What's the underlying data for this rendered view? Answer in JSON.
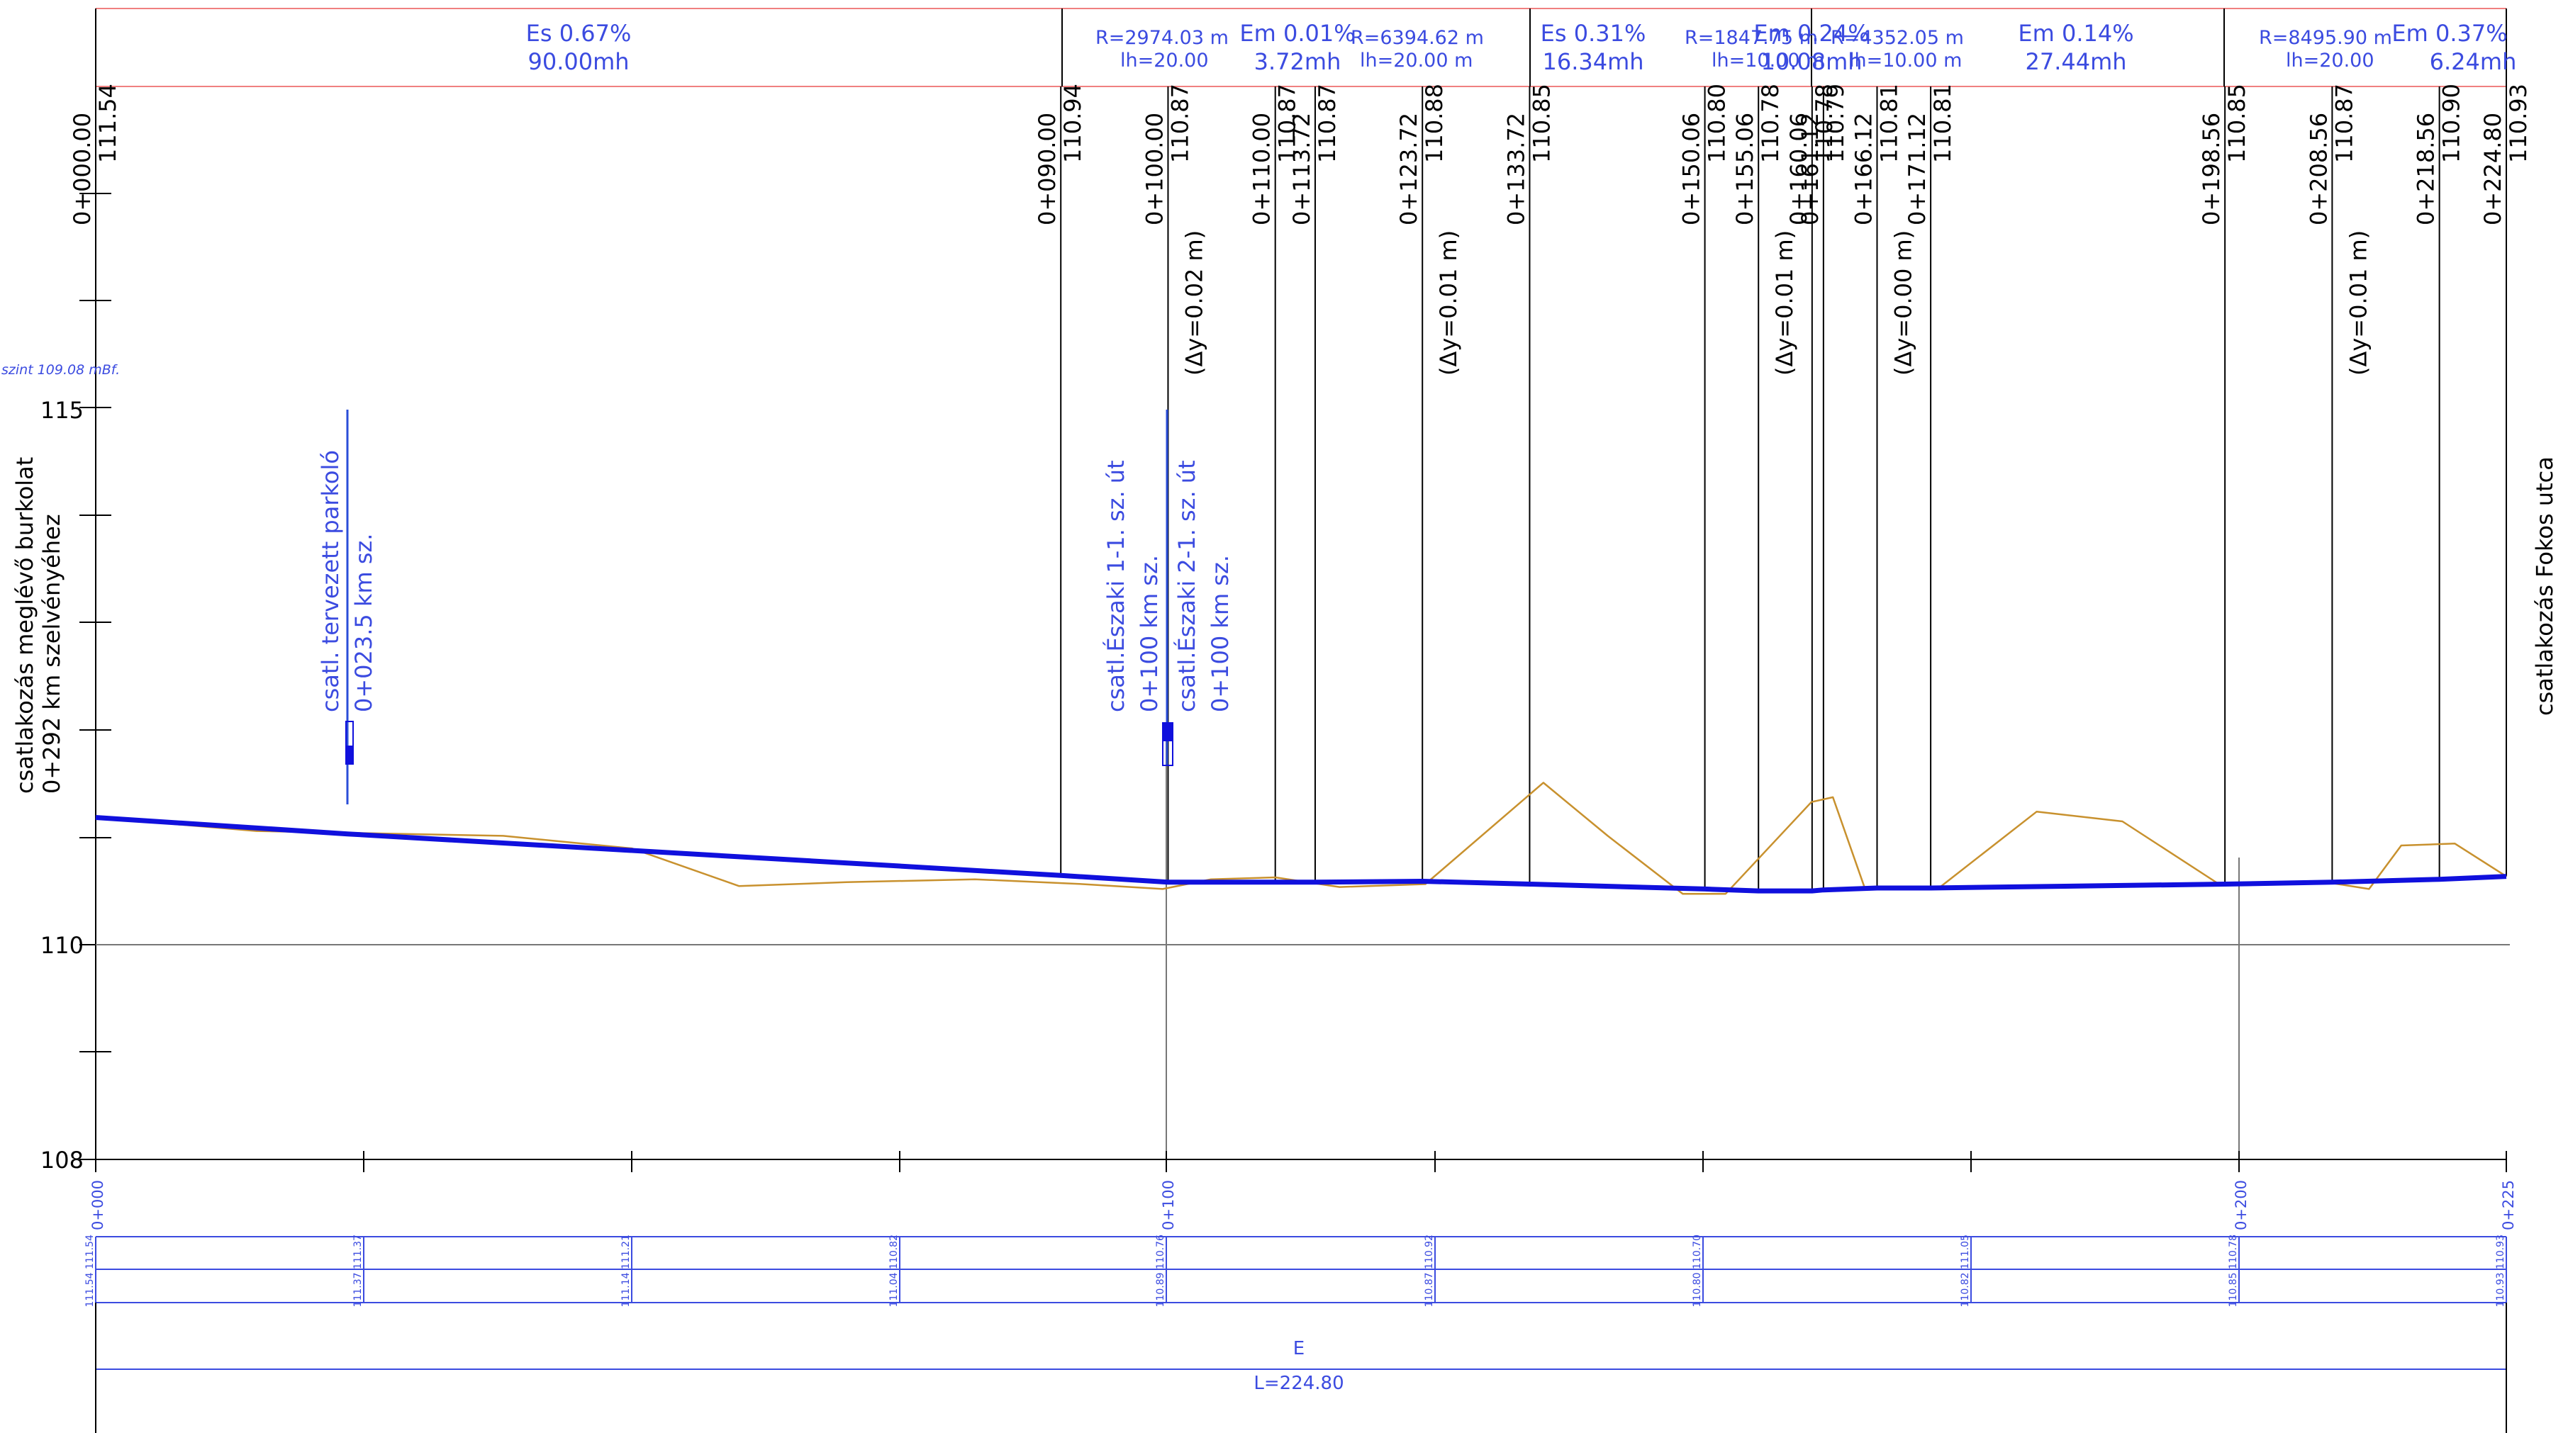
{
  "header": {
    "segments": [
      {
        "grade": "Es  0.67%",
        "length": "90.00mh"
      },
      {
        "grade": "Em  0.01%",
        "length": "3.72mh"
      },
      {
        "grade": "Es  0.31%",
        "length": "16.34mh"
      },
      {
        "grade": "Em  0.24%",
        "length": "10.08mh"
      },
      {
        "grade": "Em  0.14%",
        "length": "27.44mh"
      },
      {
        "grade": "Em  0.37%",
        "length": "6.24mh"
      }
    ],
    "curves": [
      {
        "radius": "R=2974.03  m",
        "lh": "lh=20.00"
      },
      {
        "radius": "R=6394.62  m",
        "lh": "lh=20.00  m"
      },
      {
        "radius": "R=1847.75  m",
        "lh": "lh=10.00  m"
      },
      {
        "radius": "R=4352.05  m",
        "lh": "lh=10.00  m"
      },
      {
        "radius": "R=8495.90  m",
        "lh": "lh=20.00"
      }
    ]
  },
  "stations": [
    {
      "station": "0+000.00",
      "elev": "111.54"
    },
    {
      "station": "0+090.00",
      "elev": "110.94"
    },
    {
      "station": "0+100.00",
      "elev": "110.87",
      "dy": "(Δy=0.02  m)"
    },
    {
      "station": "0+110.00",
      "elev": "110.87"
    },
    {
      "station": "0+113.72",
      "elev": "110.87"
    },
    {
      "station": "0+123.72",
      "elev": "110.88",
      "dy": "(Δy=0.01  m)"
    },
    {
      "station": "0+133.72",
      "elev": "110.85"
    },
    {
      "station": "0+150.06",
      "elev": "110.80"
    },
    {
      "station": "0+155.06",
      "elev": "110.78",
      "dy": "(Δy=0.01  m)"
    },
    {
      "station": "0+160.06",
      "elev": "110.78"
    },
    {
      "station": "0+161.12",
      "elev": "110.79"
    },
    {
      "station": "0+166.12",
      "elev": "110.81",
      "dy": "(Δy=0.00  m)"
    },
    {
      "station": "0+171.12",
      "elev": "110.81"
    },
    {
      "station": "0+198.56",
      "elev": "110.85"
    },
    {
      "station": "0+208.56",
      "elev": "110.87",
      "dy": "(Δy=0.01  m)"
    },
    {
      "station": "0+218.56",
      "elev": "110.90"
    },
    {
      "station": "0+224.80",
      "elev": "110.93"
    }
  ],
  "axis": {
    "y_ticks": [
      "115",
      "110",
      "108"
    ],
    "x_ticks": [
      "0+000",
      "0+100",
      "0+200",
      "0+225"
    ]
  },
  "labels": {
    "datum": "szint 109.08 mBf.",
    "left_note": [
      "csatlakozás meglévő burkolat",
      "0+292 km szelvényéhez"
    ],
    "right_note": "csatlakozás Fokos utca",
    "junctions": [
      {
        "line1": "csatl. tervezett parkoló",
        "line2": "0+023.5 km sz."
      },
      {
        "line1": "csatl.Északi 1-1. sz. út",
        "line2": "0+100 km sz."
      },
      {
        "line1": "csatl.Északi 2-1. sz. út",
        "line2": "0+100 km sz."
      }
    ]
  },
  "table": {
    "row1": [
      {
        "pair": "111.54 111.54"
      },
      {
        "pair": "111.37 111.37"
      },
      {
        "pair": "111.14 111.21"
      },
      {
        "pair": "111.04 110.82"
      },
      {
        "pair": "110.89 110.76"
      },
      {
        "pair": "110.87 110.92"
      },
      {
        "pair": "110.80 110.70"
      },
      {
        "pair": "110.82 111.05"
      },
      {
        "pair": "110.85 110.78"
      },
      {
        "pair": "110.93 110.93"
      }
    ],
    "element": "E",
    "length": "L=224.80"
  },
  "chart_data": {
    "type": "line",
    "title": "",
    "xlabel": "",
    "ylabel": "",
    "xlim": [
      0,
      224.8
    ],
    "ylim": [
      108,
      118
    ],
    "series": [
      {
        "color": "#1010dd",
        "x": [
          0,
          23.5,
          90,
          100,
          110,
          113.72,
          123.72,
          133.72,
          150.06,
          155.06,
          160.06,
          161.12,
          166.12,
          171.12,
          198.56,
          208.56,
          218.56,
          224.8
        ],
        "y": [
          111.54,
          111.37,
          110.94,
          110.87,
          110.87,
          110.87,
          110.88,
          110.85,
          110.8,
          110.78,
          110.78,
          110.79,
          110.81,
          110.81,
          110.85,
          110.87,
          110.9,
          110.93
        ]
      },
      {
        "color": "#c8912e",
        "x": [
          0,
          15,
          38,
          50,
          60,
          70,
          82,
          92,
          99.5,
          104,
          110,
          116,
          124,
          135,
          141,
          148,
          152,
          160,
          162,
          165,
          172,
          181,
          189,
          198,
          208,
          212,
          215,
          220,
          224.8
        ],
        "y": [
          111.54,
          111.4,
          111.35,
          111.22,
          110.83,
          110.87,
          110.9,
          110.85,
          110.8,
          110.9,
          110.92,
          110.82,
          110.85,
          111.9,
          111.35,
          110.75,
          110.75,
          111.7,
          111.75,
          110.8,
          110.82,
          111.6,
          111.5,
          110.85,
          110.87,
          110.8,
          111.25,
          111.27,
          110.93
        ]
      }
    ]
  }
}
